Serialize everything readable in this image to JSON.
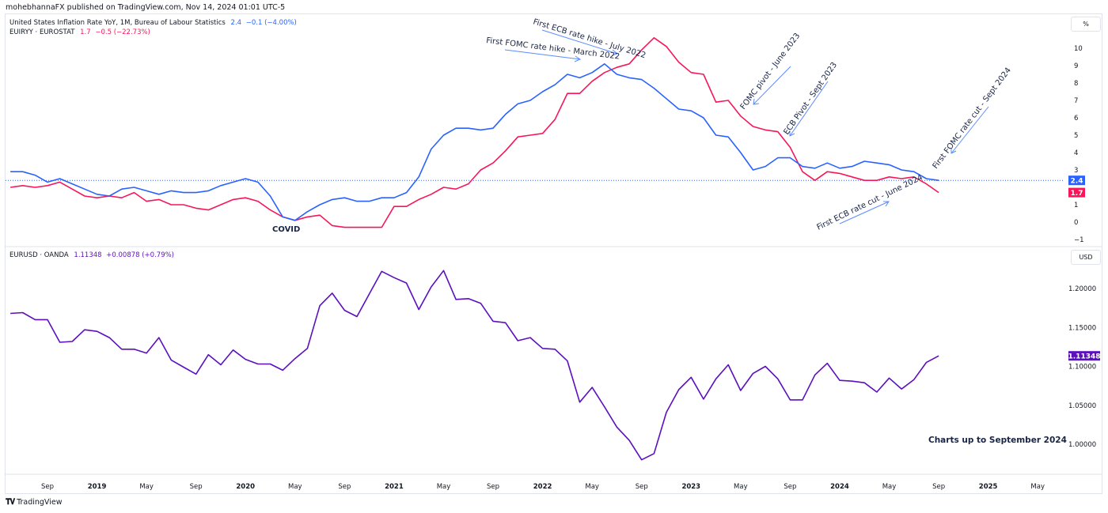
{
  "header": {
    "published": "mohebhannaFX published on TradingView.com, Nov 14, 2024 01:01 UTC-5"
  },
  "footer": {
    "brand": "TradingView"
  },
  "colors": {
    "us": "#2962ff",
    "eu": "#f7165a",
    "eurusd": "#5b0fbf",
    "annotation_arrow": "#5b8cff"
  },
  "chart_data": [
    {
      "type": "line",
      "unit": "%",
      "legend": [
        {
          "name": "United States Inflation Rate YoY, 1M, Bureau of Labour Statistics",
          "last": "2.4",
          "change": "−0.1 (−4.00%)"
        },
        {
          "name": "EUIRYY · EUROSTAT",
          "last": "1.7",
          "change": "−0.5 (−22.73%)"
        }
      ],
      "x_start": "2018-06",
      "x_freq": "monthly",
      "series": [
        {
          "name": "United States Inflation Rate YoY",
          "values": [
            2.9,
            2.9,
            2.7,
            2.3,
            2.5,
            2.2,
            1.9,
            1.6,
            1.5,
            1.9,
            2.0,
            1.8,
            1.6,
            1.8,
            1.7,
            1.7,
            1.8,
            2.1,
            2.3,
            2.5,
            2.3,
            1.5,
            0.3,
            0.1,
            0.6,
            1.0,
            1.3,
            1.4,
            1.2,
            1.2,
            1.4,
            1.4,
            1.7,
            2.6,
            4.2,
            5.0,
            5.4,
            5.4,
            5.3,
            5.4,
            6.2,
            6.8,
            7.0,
            7.5,
            7.9,
            8.5,
            8.3,
            8.6,
            9.1,
            8.5,
            8.3,
            8.2,
            7.7,
            7.1,
            6.5,
            6.4,
            6.0,
            5.0,
            4.9,
            4.0,
            3.0,
            3.2,
            3.7,
            3.7,
            3.2,
            3.1,
            3.4,
            3.1,
            3.2,
            3.5,
            3.4,
            3.3,
            3.0,
            2.9,
            2.5,
            2.4
          ]
        },
        {
          "name": "EUIRYY",
          "values": [
            2.0,
            2.1,
            2.0,
            2.1,
            2.3,
            1.9,
            1.5,
            1.4,
            1.5,
            1.4,
            1.7,
            1.2,
            1.3,
            1.0,
            1.0,
            0.8,
            0.7,
            1.0,
            1.3,
            1.4,
            1.2,
            0.7,
            0.3,
            0.1,
            0.3,
            0.4,
            -0.2,
            -0.3,
            -0.3,
            -0.3,
            -0.3,
            0.9,
            0.9,
            1.3,
            1.6,
            2.0,
            1.9,
            2.2,
            3.0,
            3.4,
            4.1,
            4.9,
            5.0,
            5.1,
            5.9,
            7.4,
            7.4,
            8.1,
            8.6,
            8.9,
            9.1,
            9.9,
            10.6,
            10.1,
            9.2,
            8.6,
            8.5,
            6.9,
            7.0,
            6.1,
            5.5,
            5.3,
            5.2,
            4.3,
            2.9,
            2.4,
            2.9,
            2.8,
            2.6,
            2.4,
            2.4,
            2.6,
            2.5,
            2.6,
            2.2,
            1.7
          ]
        }
      ],
      "y_ticks": [
        "10",
        "9",
        "8",
        "7",
        "6",
        "5",
        "4",
        "3",
        "1",
        "0",
        "−1"
      ],
      "ylim": [
        -1,
        10
      ],
      "annotations": {
        "ecb_hike": "First ECB rate hike - July 2022",
        "fomc_hike": "First FOMC rate hike - March 2022",
        "fomc_pivot": "FOMC pivot - June 2023",
        "ecb_pivot": "ECB Pivot - Sept 2023",
        "fomc_cut": "First FOMC rate cut - Sept 2024",
        "ecb_cut": "First ECB rate cut - June 2024",
        "covid": "COVID"
      }
    },
    {
      "type": "line",
      "unit": "USD",
      "legend": [
        {
          "name": "EURUSD · OANDA",
          "last": "1.11348",
          "change": "+0.00878 (+0.79%)"
        }
      ],
      "x_start": "2018-06",
      "x_freq": "monthly",
      "series": [
        {
          "name": "EURUSD",
          "values": [
            1.168,
            1.169,
            1.16,
            1.16,
            1.131,
            1.132,
            1.147,
            1.145,
            1.137,
            1.122,
            1.122,
            1.117,
            1.137,
            1.108,
            1.099,
            1.09,
            1.115,
            1.102,
            1.121,
            1.109,
            1.103,
            1.103,
            1.095,
            1.11,
            1.123,
            1.178,
            1.194,
            1.172,
            1.164,
            1.193,
            1.222,
            1.214,
            1.207,
            1.173,
            1.202,
            1.223,
            1.186,
            1.187,
            1.181,
            1.158,
            1.156,
            1.133,
            1.137,
            1.123,
            1.122,
            1.107,
            1.054,
            1.073,
            1.048,
            1.022,
            1.005,
            0.98,
            0.988,
            1.041,
            1.07,
            1.086,
            1.058,
            1.084,
            1.102,
            1.069,
            1.091,
            1.1,
            1.084,
            1.057,
            1.057,
            1.089,
            1.104,
            1.082,
            1.081,
            1.079,
            1.067,
            1.085,
            1.071,
            1.083,
            1.105,
            1.1135
          ]
        }
      ],
      "y_ticks": [
        "1.20000",
        "1.15000",
        "1.10000",
        "1.05000",
        "1.00000"
      ],
      "ylim": [
        0.97,
        1.24
      ],
      "note": "Charts up to September 2024"
    }
  ],
  "x_axis": {
    "ticks": [
      "Sep",
      "2019",
      "May",
      "Sep",
      "2020",
      "May",
      "Sep",
      "2021",
      "May",
      "Sep",
      "2022",
      "May",
      "Sep",
      "2023",
      "May",
      "Sep",
      "2024",
      "May",
      "Sep",
      "2025",
      "May"
    ]
  }
}
